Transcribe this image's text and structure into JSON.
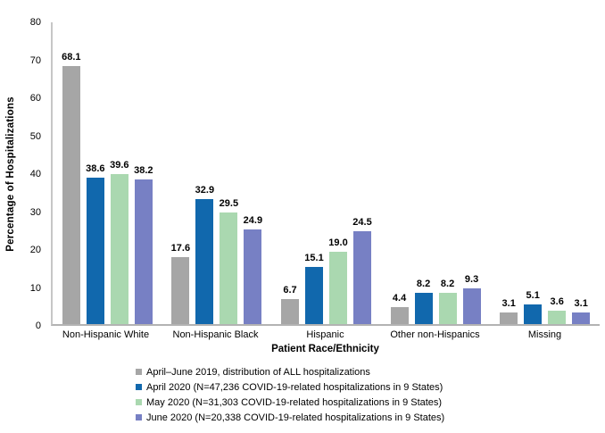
{
  "chart_data": {
    "type": "bar",
    "title": "",
    "xlabel": "Patient Race/Ethnicity",
    "ylabel": "Percentage of Hospitalizations",
    "ylim": [
      0,
      80
    ],
    "yticks": [
      0,
      10,
      20,
      30,
      40,
      50,
      60,
      70,
      80
    ],
    "grid": false,
    "legend_position": "bottom",
    "value_labels": true,
    "categories": [
      "Non-Hispanic White",
      "Non-Hispanic Black",
      "Hispanic",
      "Other non-Hispanics",
      "Missing"
    ],
    "series": [
      {
        "name": "April–June 2019, distribution of ALL hospitalizations",
        "color": "#a6a6a6",
        "values": [
          68.1,
          17.6,
          6.7,
          4.4,
          3.1
        ]
      },
      {
        "name": "April 2020 (N=47,236 COVID-19-related hospitalizations in 9 States)",
        "color": "#1168ad",
        "values": [
          38.6,
          32.9,
          15.1,
          8.2,
          5.1
        ]
      },
      {
        "name": "May 2020 (N=31,303 COVID-19-related hospitalizations in 9 States)",
        "color": "#aad8b0",
        "values": [
          39.6,
          29.5,
          19.0,
          8.2,
          3.6
        ]
      },
      {
        "name": "June 2020 (N=20,338 COVID-19-related hospitalizations in 9 States)",
        "color": "#7780c4",
        "values": [
          38.2,
          24.9,
          24.5,
          9.3,
          3.1
        ]
      }
    ]
  }
}
